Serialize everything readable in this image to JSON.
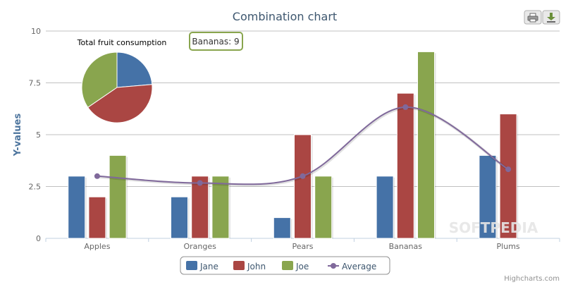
{
  "chart_data": [
    {
      "type": "bar",
      "title": "Combination chart",
      "xlabel": "",
      "ylabel": "Y-values",
      "categories": [
        "Apples",
        "Oranges",
        "Pears",
        "Bananas",
        "Plums"
      ],
      "ylim": [
        0,
        10
      ],
      "yticks": [
        0,
        2.5,
        5,
        7.5,
        10
      ],
      "ytick_labels": [
        "0",
        "2.5",
        "5",
        "7.5",
        "10"
      ],
      "grid": true,
      "legend": "bottom-center",
      "series": [
        {
          "name": "Jane",
          "type": "bar",
          "color": "#4572a7",
          "values": [
            3,
            2,
            1,
            3,
            4
          ]
        },
        {
          "name": "John",
          "type": "bar",
          "color": "#aa4643",
          "values": [
            2,
            3,
            5,
            7,
            6
          ]
        },
        {
          "name": "Joe",
          "type": "bar",
          "color": "#89a54e",
          "values": [
            4,
            3,
            3,
            9,
            0
          ]
        },
        {
          "name": "Average",
          "type": "spline",
          "color": "#80699b",
          "values": [
            3,
            2.67,
            3,
            6.33,
            3.33
          ]
        }
      ],
      "tooltip": {
        "text": "Bananas: 9",
        "category": "Bananas",
        "series": "Joe"
      }
    },
    {
      "type": "pie",
      "title": "Total fruit consumption",
      "slices": [
        {
          "name": "Jane",
          "value": 13,
          "color": "#4572a7"
        },
        {
          "name": "John",
          "value": 23,
          "color": "#aa4643"
        },
        {
          "name": "Joe",
          "value": 19,
          "color": "#89a54e"
        }
      ]
    }
  ],
  "toolbar": {
    "print_icon": "printer-icon",
    "export_icon": "download-icon"
  },
  "credits": "Highcharts.com",
  "watermark": "SOFTPEDIA"
}
